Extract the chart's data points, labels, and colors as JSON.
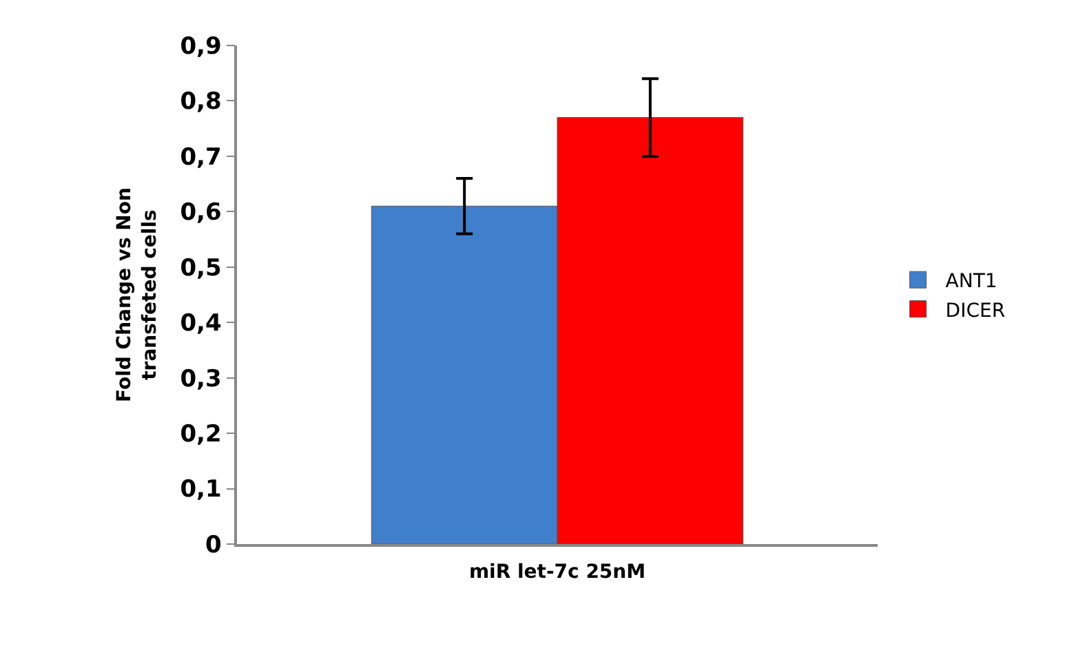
{
  "chart_data": {
    "type": "bar",
    "ylabel": "Fold Change vs Non transfeted cells",
    "categories": [
      "miR let-7c 25nM"
    ],
    "series": [
      {
        "name": "ANT1",
        "color": "#3f7fcc",
        "values": [
          0.61
        ],
        "errors": [
          [
            0.56,
            0.66
          ]
        ]
      },
      {
        "name": "DICER",
        "color": "#ff0000",
        "values": [
          0.77
        ],
        "errors": [
          [
            0.7,
            0.84
          ]
        ]
      }
    ],
    "ylim": [
      0,
      0.9
    ],
    "yticks": [
      0,
      {
        "value": 0.1,
        "label": "0,1"
      },
      {
        "value": 0.2,
        "label": "0,2"
      },
      {
        "value": 0.3,
        "label": "0,3"
      },
      {
        "value": 0.4,
        "label": "0,4"
      },
      {
        "value": 0.5,
        "label": "0,5"
      },
      {
        "value": 0.6,
        "label": "0,6"
      },
      {
        "value": 0.7,
        "label": "0,7"
      },
      {
        "value": 0.8,
        "label": "0,8"
      },
      {
        "value": 0.9,
        "label": "0,9"
      }
    ],
    "legend": "right"
  }
}
